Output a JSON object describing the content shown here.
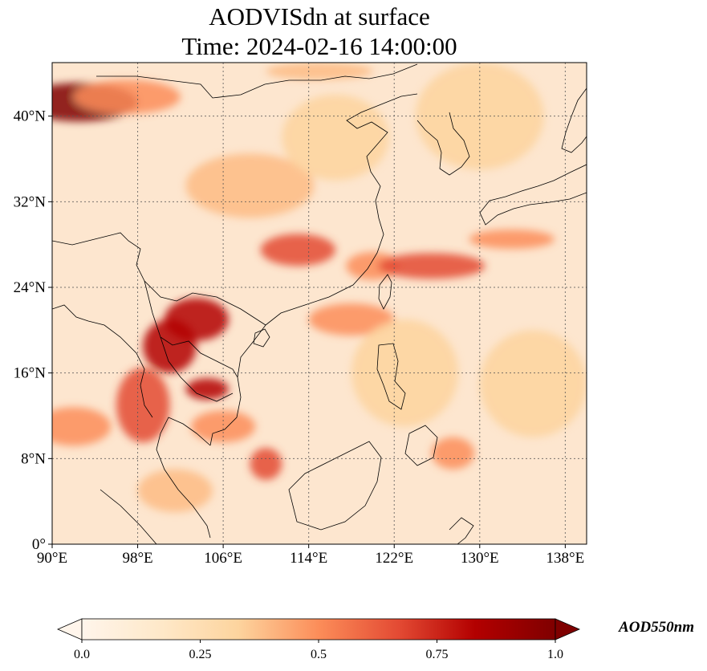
{
  "title": {
    "line1": "AODVISdn at surface",
    "line2": "Time: 2024-02-16 14:00:00"
  },
  "map": {
    "lon_range": [
      90,
      140
    ],
    "lat_range": [
      0,
      45
    ],
    "lon_ticks": [
      {
        "value": 90,
        "label": "90°E"
      },
      {
        "value": 98,
        "label": "98°E"
      },
      {
        "value": 106,
        "label": "106°E"
      },
      {
        "value": 114,
        "label": "114°E"
      },
      {
        "value": 122,
        "label": "122°E"
      },
      {
        "value": 130,
        "label": "130°E"
      },
      {
        "value": 138,
        "label": "138°E"
      }
    ],
    "lat_ticks": [
      {
        "value": 0,
        "label": "0°"
      },
      {
        "value": 8,
        "label": "8°N"
      },
      {
        "value": 16,
        "label": "16°N"
      },
      {
        "value": 24,
        "label": "24°N"
      },
      {
        "value": 32,
        "label": "32°N"
      },
      {
        "value": 40,
        "label": "40°N"
      }
    ],
    "gridlines": true,
    "colormap": [
      "#fff5eb",
      "#fdd49e",
      "#fdbb84",
      "#fc8d59",
      "#e34a33",
      "#b30000",
      "#7f0000"
    ]
  },
  "colorbar": {
    "label": "AOD550nm",
    "ticks": [
      {
        "value": 0.0,
        "label": "0.0"
      },
      {
        "value": 0.25,
        "label": "0.25"
      },
      {
        "value": 0.5,
        "label": "0.5"
      },
      {
        "value": 0.75,
        "label": "0.75"
      },
      {
        "value": 1.0,
        "label": "1.0"
      }
    ],
    "range": [
      0,
      1
    ],
    "extend": "both"
  },
  "plumes": [
    {
      "lon": 92.5,
      "lat": 41.3,
      "rlon": 5.5,
      "rlat": 1.8,
      "v": 1.0
    },
    {
      "lon": 97.0,
      "lat": 41.8,
      "rlon": 5.0,
      "rlat": 1.6,
      "v": 0.55
    },
    {
      "lon": 115.0,
      "lat": 44.2,
      "rlon": 5.0,
      "rlat": 0.8,
      "v": 0.4
    },
    {
      "lon": 103.5,
      "lat": 21.0,
      "rlon": 3.0,
      "rlat": 2.0,
      "v": 0.85
    },
    {
      "lon": 101.0,
      "lat": 18.5,
      "rlon": 2.5,
      "rlat": 2.5,
      "v": 0.85
    },
    {
      "lon": 104.5,
      "lat": 14.5,
      "rlon": 2.0,
      "rlat": 1.0,
      "v": 0.85
    },
    {
      "lon": 98.5,
      "lat": 13.0,
      "rlon": 2.5,
      "rlat": 3.5,
      "v": 0.7
    },
    {
      "lon": 92.0,
      "lat": 11.0,
      "rlon": 3.5,
      "rlat": 1.8,
      "v": 0.55
    },
    {
      "lon": 106.0,
      "lat": 11.0,
      "rlon": 3.0,
      "rlat": 1.5,
      "v": 0.5
    },
    {
      "lon": 110.0,
      "lat": 7.5,
      "rlon": 1.5,
      "rlat": 1.5,
      "v": 0.6
    },
    {
      "lon": 113.0,
      "lat": 27.5,
      "rlon": 3.5,
      "rlat": 1.5,
      "v": 0.6
    },
    {
      "lon": 120.0,
      "lat": 26.0,
      "rlon": 2.5,
      "rlat": 1.3,
      "v": 0.55
    },
    {
      "lon": 125.5,
      "lat": 26.0,
      "rlon": 5.0,
      "rlat": 1.2,
      "v": 0.6
    },
    {
      "lon": 133.0,
      "lat": 28.5,
      "rlon": 4.0,
      "rlat": 0.9,
      "v": 0.5
    },
    {
      "lon": 118.0,
      "lat": 21.0,
      "rlon": 4.0,
      "rlat": 1.5,
      "v": 0.45
    },
    {
      "lon": 127.5,
      "lat": 8.5,
      "rlon": 2.0,
      "rlat": 1.5,
      "v": 0.45
    },
    {
      "lon": 108.5,
      "lat": 33.5,
      "rlon": 6.0,
      "rlat": 3.0,
      "v": 0.25
    },
    {
      "lon": 116.5,
      "lat": 38.0,
      "rlon": 5.0,
      "rlat": 4.0,
      "v": 0.2
    },
    {
      "lon": 123.0,
      "lat": 16.0,
      "rlon": 5.0,
      "rlat": 5.0,
      "v": 0.2
    },
    {
      "lon": 101.5,
      "lat": 5.0,
      "rlon": 3.5,
      "rlat": 2.0,
      "v": 0.3
    },
    {
      "lon": 135.0,
      "lat": 15.0,
      "rlon": 5.0,
      "rlat": 5.0,
      "v": 0.15
    },
    {
      "lon": 130.0,
      "lat": 40.0,
      "rlon": 6.0,
      "rlat": 5.0,
      "v": 0.1
    }
  ]
}
